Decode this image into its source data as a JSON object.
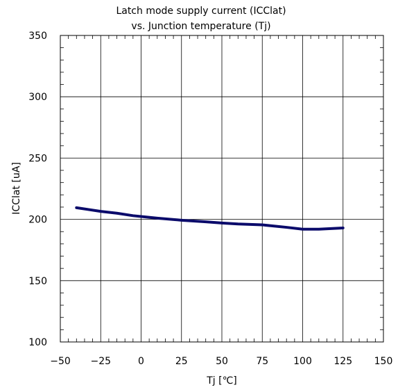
{
  "chart_data": {
    "type": "line",
    "title": [
      "Latch mode supply current (ICClat)",
      "vs. Junction temperature (Tj)"
    ],
    "xlabel": "Tj [℃]",
    "ylabel": "ICClat [uA]",
    "xlim": [
      -50,
      150
    ],
    "ylim": [
      100,
      350
    ],
    "xticks": [
      "-50",
      "-25",
      "0",
      "25",
      "50",
      "75",
      "100",
      "125",
      "150"
    ],
    "yticks": [
      "100",
      "150",
      "200",
      "250",
      "300",
      "350"
    ],
    "grid": true,
    "legend": "none",
    "series": [
      {
        "color": "#0b0b6b",
        "x": [
          -40,
          -25,
          -15,
          -5,
          0,
          10,
          25,
          40,
          50,
          60,
          75,
          90,
          100,
          110,
          125
        ],
        "y": [
          209.5,
          206.5,
          205,
          203,
          202.3,
          201,
          199.3,
          198,
          197,
          196.2,
          195.5,
          193.5,
          192,
          192,
          193
        ]
      }
    ]
  }
}
